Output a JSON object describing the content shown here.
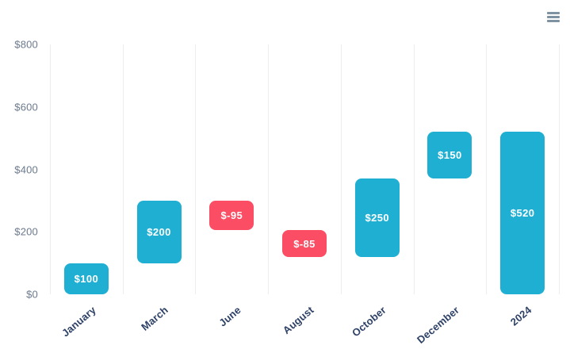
{
  "header": {
    "menu_icon": "hamburger-menu-icon",
    "menu_icon_color": "#7f92a2"
  },
  "chart_data": {
    "type": "bar",
    "subtype": "waterfall",
    "title": "",
    "xlabel": "",
    "ylabel": "",
    "categories": [
      "January",
      "March",
      "June",
      "August",
      "October",
      "December",
      "2024"
    ],
    "series": [
      {
        "name": "values",
        "bars": [
          {
            "category": "January",
            "start": 0,
            "end": 100,
            "value": 100,
            "label": "$100",
            "kind": "increase"
          },
          {
            "category": "March",
            "start": 100,
            "end": 300,
            "value": 200,
            "label": "$200",
            "kind": "increase"
          },
          {
            "category": "June",
            "start": 300,
            "end": 205,
            "value": -95,
            "label": "$-95",
            "kind": "decrease"
          },
          {
            "category": "August",
            "start": 205,
            "end": 120,
            "value": -85,
            "label": "$-85",
            "kind": "decrease"
          },
          {
            "category": "October",
            "start": 120,
            "end": 370,
            "value": 250,
            "label": "$250",
            "kind": "increase"
          },
          {
            "category": "December",
            "start": 370,
            "end": 520,
            "value": 150,
            "label": "$150",
            "kind": "increase"
          },
          {
            "category": "2024",
            "start": 0,
            "end": 520,
            "value": 520,
            "label": "$520",
            "kind": "total"
          }
        ]
      }
    ],
    "ylim": [
      0,
      800
    ],
    "yticks": [
      {
        "value": 0,
        "label": "$0"
      },
      {
        "value": 200,
        "label": "$200"
      },
      {
        "value": 400,
        "label": "$400"
      },
      {
        "value": 600,
        "label": "$600"
      },
      {
        "value": 800,
        "label": "$800"
      }
    ],
    "grid": "vertical-only",
    "legend": "none",
    "colors": {
      "increase": "#1fafd3",
      "decrease": "#fb4d64",
      "total": "#1fafd3",
      "gridline": "#ededed",
      "y_tick_text": "#6b7a8d",
      "x_tick_text": "#2e4166",
      "bar_label_text": "#ffffff"
    }
  }
}
